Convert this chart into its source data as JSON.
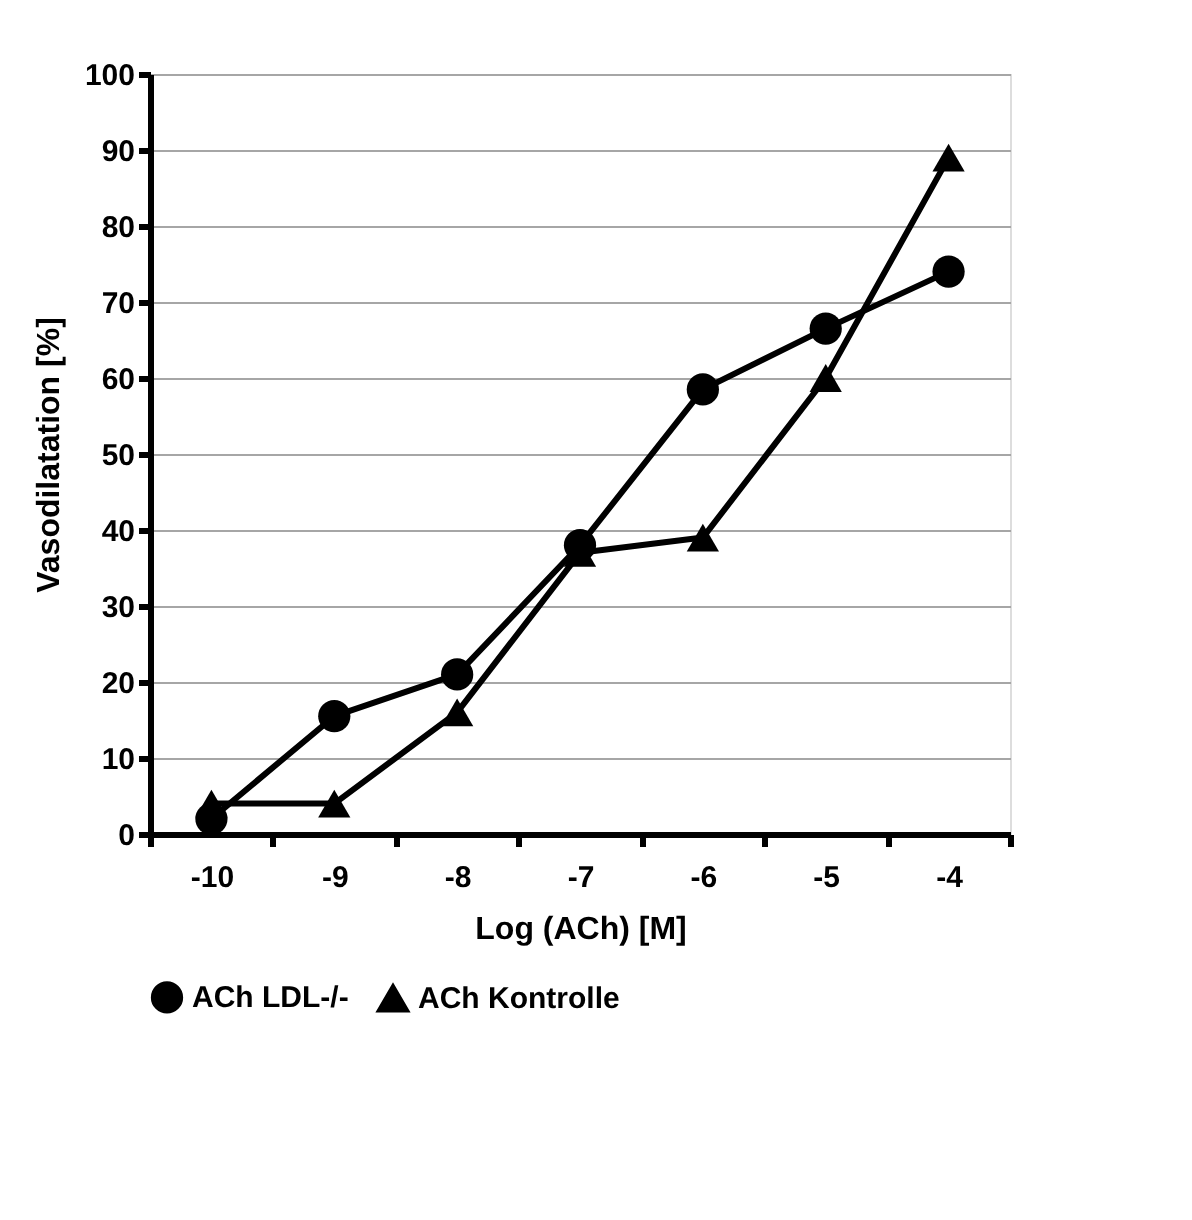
{
  "chart_data": {
    "type": "line",
    "xlabel": "Log (ACh) [M]",
    "ylabel": "Vasodilatation [%]",
    "categories": [
      "-10",
      "-9",
      "-8",
      "-7",
      "-6",
      "-5",
      "-4"
    ],
    "series": [
      {
        "name": "ACh LDL-/-",
        "color": "#000000",
        "marker": "circle",
        "values": [
          2,
          15.5,
          21,
          38,
          58.5,
          66.5,
          74
        ]
      },
      {
        "name": "ACh Kontrolle",
        "color": "#000000",
        "marker": "triangle",
        "values": [
          4,
          4,
          16,
          37,
          39,
          60,
          89
        ]
      }
    ],
    "ylim": [
      0,
      100
    ],
    "yticks": [
      0,
      10,
      20,
      30,
      40,
      50,
      60,
      70,
      80,
      90,
      100
    ],
    "grid": "y",
    "legend": "bottom",
    "line_style": "solid"
  }
}
